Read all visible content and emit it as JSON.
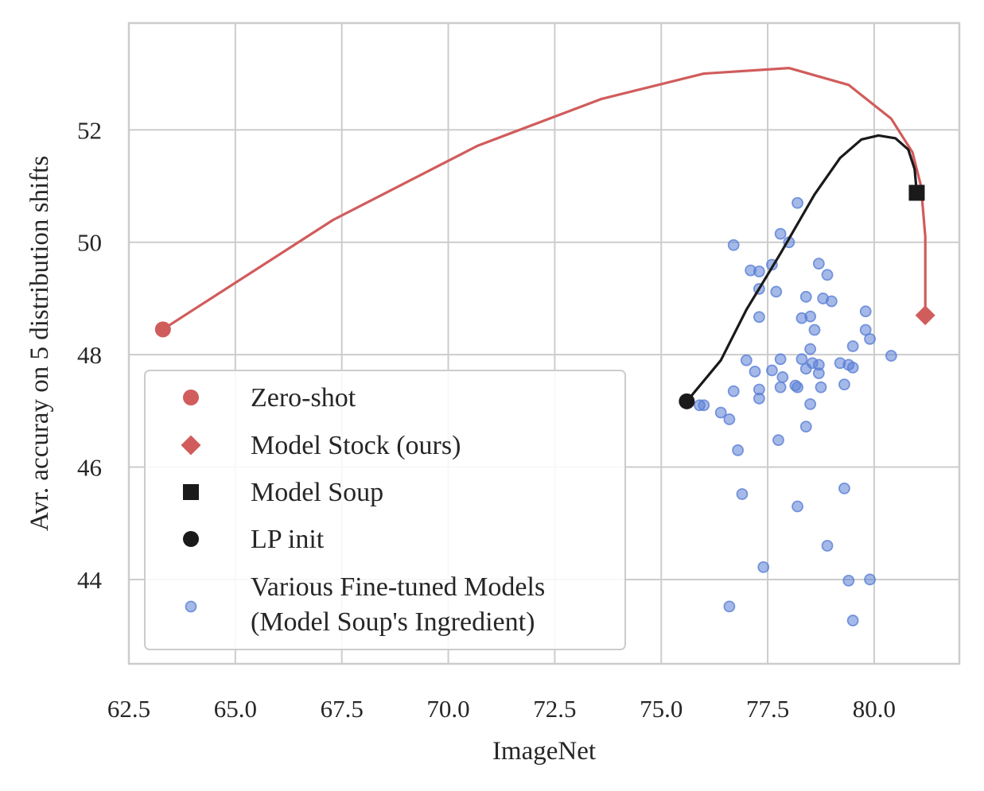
{
  "chart_data": {
    "type": "scatter",
    "xlabel": "ImageNet",
    "ylabel": "Avr. accuray on 5 distribution shifts",
    "xlim": [
      62.5,
      82.0
    ],
    "ylim": [
      42.5,
      53.9
    ],
    "xticks": [
      62.5,
      65.0,
      67.5,
      70.0,
      72.5,
      75.0,
      77.5,
      80.0
    ],
    "xtick_labels": [
      "62.5",
      "65.0",
      "67.5",
      "70.0",
      "72.5",
      "75.0",
      "77.5",
      "80.0"
    ],
    "yticks": [
      44,
      46,
      48,
      50,
      52
    ],
    "ytick_labels": [
      "44",
      "46",
      "48",
      "50",
      "52"
    ],
    "grid": true,
    "legend_position": "lower-left",
    "colors": {
      "red": "#d15c5c",
      "black": "#1a1a1a",
      "blue": "#5b7fd6",
      "grid": "#cccccc",
      "frame": "#cccccc"
    },
    "legend": [
      {
        "label": "Zero-shot",
        "marker": "circle",
        "color": "#d15c5c"
      },
      {
        "label": "Model Stock (ours)",
        "marker": "diamond",
        "color": "#d15c5c"
      },
      {
        "label": "Model Soup",
        "marker": "square",
        "color": "#1a1a1a"
      },
      {
        "label": "LP init",
        "marker": "circle",
        "color": "#1a1a1a"
      },
      {
        "label": "Various Fine-tuned Models\n(Model Soup's Ingredient)",
        "marker": "small-circle",
        "color": "#5b7fd6"
      }
    ],
    "series": [
      {
        "kind": "line",
        "color": "#d15c5c",
        "points": [
          [
            63.3,
            48.45
          ],
          [
            67.3,
            50.4
          ],
          [
            70.7,
            51.72
          ],
          [
            73.6,
            52.55
          ],
          [
            76.0,
            53.0
          ],
          [
            78.0,
            53.1
          ],
          [
            79.4,
            52.8
          ],
          [
            80.4,
            52.2
          ],
          [
            80.9,
            51.6
          ],
          [
            81.1,
            51.0
          ],
          [
            81.2,
            50.1
          ],
          [
            81.2,
            48.7
          ]
        ]
      },
      {
        "kind": "line",
        "color": "#1a1a1a",
        "points": [
          [
            75.6,
            47.17
          ],
          [
            76.4,
            47.9
          ],
          [
            77.0,
            48.8
          ],
          [
            77.8,
            49.8
          ],
          [
            78.6,
            50.85
          ],
          [
            79.2,
            51.5
          ],
          [
            79.7,
            51.83
          ],
          [
            80.1,
            51.9
          ],
          [
            80.5,
            51.85
          ],
          [
            80.8,
            51.65
          ],
          [
            80.95,
            51.3
          ],
          [
            81.0,
            50.88
          ]
        ]
      },
      {
        "kind": "marker",
        "name": "Zero-shot",
        "marker": "circle",
        "color": "#d15c5c",
        "points": [
          [
            63.3,
            48.45
          ]
        ]
      },
      {
        "kind": "marker",
        "name": "Model Stock (ours)",
        "marker": "diamond",
        "color": "#d15c5c",
        "points": [
          [
            81.2,
            48.7
          ]
        ]
      },
      {
        "kind": "marker",
        "name": "Model Soup",
        "marker": "square",
        "color": "#1a1a1a",
        "points": [
          [
            81.0,
            50.88
          ]
        ]
      },
      {
        "kind": "marker",
        "name": "LP init",
        "marker": "circle",
        "color": "#1a1a1a",
        "points": [
          [
            75.6,
            47.17
          ]
        ]
      },
      {
        "kind": "scatter",
        "name": "Various Fine-tuned Models (Model Soup's Ingredient)",
        "color": "#5b7fd6",
        "points": [
          [
            78.2,
            50.7
          ],
          [
            77.8,
            50.15
          ],
          [
            78.0,
            50.0
          ],
          [
            76.7,
            49.95
          ],
          [
            77.6,
            49.6
          ],
          [
            78.7,
            49.62
          ],
          [
            77.1,
            49.5
          ],
          [
            77.3,
            49.48
          ],
          [
            78.9,
            49.42
          ],
          [
            77.7,
            49.12
          ],
          [
            77.3,
            49.17
          ],
          [
            78.4,
            49.03
          ],
          [
            78.8,
            49.0
          ],
          [
            79.0,
            48.95
          ],
          [
            79.8,
            48.77
          ],
          [
            77.3,
            48.67
          ],
          [
            78.3,
            48.65
          ],
          [
            78.5,
            48.68
          ],
          [
            78.6,
            48.44
          ],
          [
            79.8,
            48.44
          ],
          [
            79.9,
            48.28
          ],
          [
            79.5,
            48.15
          ],
          [
            78.5,
            48.1
          ],
          [
            80.4,
            47.98
          ],
          [
            78.3,
            47.92
          ],
          [
            77.0,
            47.9
          ],
          [
            77.8,
            47.92
          ],
          [
            78.55,
            47.85
          ],
          [
            79.2,
            47.85
          ],
          [
            79.4,
            47.82
          ],
          [
            78.7,
            47.82
          ],
          [
            79.5,
            47.77
          ],
          [
            78.4,
            47.75
          ],
          [
            77.2,
            47.7
          ],
          [
            77.6,
            47.72
          ],
          [
            78.7,
            47.67
          ],
          [
            77.85,
            47.6
          ],
          [
            79.3,
            47.47
          ],
          [
            78.15,
            47.45
          ],
          [
            78.2,
            47.42
          ],
          [
            77.8,
            47.42
          ],
          [
            78.75,
            47.42
          ],
          [
            77.3,
            47.38
          ],
          [
            76.7,
            47.35
          ],
          [
            77.3,
            47.22
          ],
          [
            78.5,
            47.12
          ],
          [
            76.0,
            47.1
          ],
          [
            75.9,
            47.1
          ],
          [
            76.4,
            46.97
          ],
          [
            76.6,
            46.85
          ],
          [
            78.4,
            46.72
          ],
          [
            77.75,
            46.48
          ],
          [
            76.8,
            46.3
          ],
          [
            79.3,
            45.62
          ],
          [
            76.9,
            45.52
          ],
          [
            78.2,
            45.3
          ],
          [
            78.9,
            44.6
          ],
          [
            77.4,
            44.22
          ],
          [
            79.9,
            44.0
          ],
          [
            79.4,
            43.98
          ],
          [
            76.6,
            43.52
          ],
          [
            79.5,
            43.27
          ]
        ]
      }
    ]
  }
}
